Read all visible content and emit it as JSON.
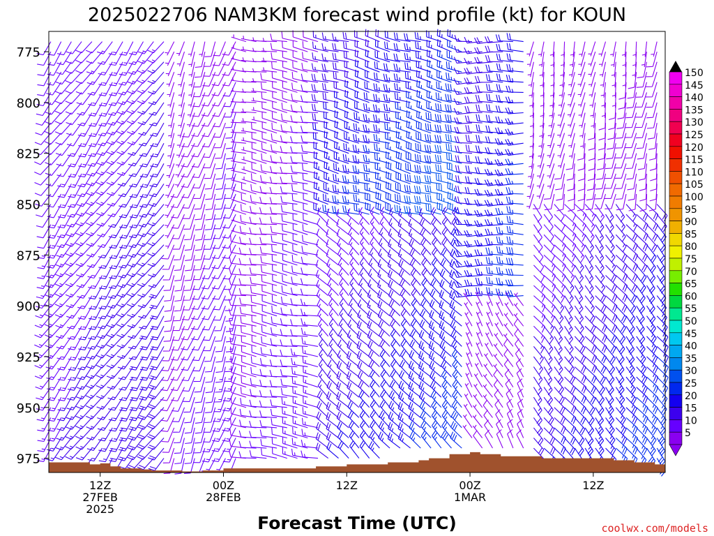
{
  "chart_data": {
    "type": "wind-barb time-height profile",
    "title": "2025022706 NAM3KM forecast wind profile (kt) for KOUN",
    "xlabel": "Forecast Time (UTC)",
    "credit": "coolwx.com/models",
    "y_axis": {
      "ticks": [
        "775",
        "800",
        "825",
        "850",
        "875",
        "900",
        "925",
        "950",
        "975"
      ],
      "range": [
        982,
        765
      ]
    },
    "x_axis": {
      "hour_range": [
        7,
        67
      ],
      "ticks": [
        {
          "hour": 12,
          "lines": [
            "12Z",
            "27FEB",
            "2025"
          ]
        },
        {
          "hour": 24,
          "lines": [
            "00Z",
            "28FEB"
          ]
        },
        {
          "hour": 36,
          "lines": [
            "12Z"
          ]
        },
        {
          "hour": 48,
          "lines": [
            "00Z",
            "1MAR"
          ]
        },
        {
          "hour": 60,
          "lines": [
            "12Z"
          ]
        }
      ]
    },
    "colorbar": {
      "labels": [
        "5",
        "10",
        "15",
        "20",
        "25",
        "30",
        "35",
        "40",
        "45",
        "50",
        "55",
        "60",
        "65",
        "70",
        "75",
        "80",
        "85",
        "90",
        "95",
        "100",
        "105",
        "110",
        "115",
        "120",
        "125",
        "130",
        "135",
        "140",
        "145",
        "150"
      ],
      "colors": [
        "#8a00f0",
        "#6600ff",
        "#3c00ee",
        "#1400f0",
        "#0028ee",
        "#0050ee",
        "#0088ee",
        "#00a8f0",
        "#00c8f0",
        "#00e8d0",
        "#00e890",
        "#00d840",
        "#22e000",
        "#77ee00",
        "#c0f000",
        "#f0f000",
        "#f0d800",
        "#f0b000",
        "#f09400",
        "#f07c00",
        "#f06a00",
        "#f05000",
        "#f03000",
        "#f01000",
        "#f00020",
        "#f00050",
        "#f00080",
        "#f000a8",
        "#f000d0",
        "#f000f0"
      ]
    },
    "terrain_color": "#a0522d",
    "surface_pressure": [
      {
        "hour": 7,
        "p": 977
      },
      {
        "hour": 10,
        "p": 977
      },
      {
        "hour": 11,
        "p": 978
      },
      {
        "hour": 12,
        "p": 977.5
      },
      {
        "hour": 13,
        "p": 979
      },
      {
        "hour": 14,
        "p": 980
      },
      {
        "hour": 16,
        "p": 980.5
      },
      {
        "hour": 17,
        "p": 981
      },
      {
        "hour": 19,
        "p": 981
      },
      {
        "hour": 20,
        "p": 981.5
      },
      {
        "hour": 22,
        "p": 981
      },
      {
        "hour": 24,
        "p": 980
      },
      {
        "hour": 30,
        "p": 980
      },
      {
        "hour": 33,
        "p": 979
      },
      {
        "hour": 36,
        "p": 978
      },
      {
        "hour": 40,
        "p": 977
      },
      {
        "hour": 43,
        "p": 976
      },
      {
        "hour": 44,
        "p": 975
      },
      {
        "hour": 46,
        "p": 973
      },
      {
        "hour": 48,
        "p": 972
      },
      {
        "hour": 49,
        "p": 973
      },
      {
        "hour": 51,
        "p": 974
      },
      {
        "hour": 55,
        "p": 975
      },
      {
        "hour": 60,
        "p": 975
      },
      {
        "hour": 62,
        "p": 976
      },
      {
        "hour": 64,
        "p": 977
      },
      {
        "hour": 66,
        "p": 978
      },
      {
        "hour": 67,
        "p": 977
      }
    ],
    "wind_regimes": [
      {
        "hours": [
          7,
          19
        ],
        "levels": [
          765,
          982
        ],
        "direction_deg": 215,
        "speed_kt": [
          10,
          20
        ]
      },
      {
        "hours": [
          19,
          26
        ],
        "levels": [
          765,
          982
        ],
        "direction_deg": 200,
        "speed_kt": [
          5,
          15
        ]
      },
      {
        "hours": [
          26,
          34
        ],
        "levels": [
          765,
          982
        ],
        "direction_deg": 280,
        "speed_kt": [
          5,
          15
        ]
      },
      {
        "hours": [
          34,
          48
        ],
        "levels": [
          765,
          860
        ],
        "direction_deg": 285,
        "speed_kt": [
          15,
          35
        ]
      },
      {
        "hours": [
          34,
          48
        ],
        "levels": [
          860,
          982
        ],
        "direction_deg": 315,
        "speed_kt": [
          10,
          30
        ]
      },
      {
        "hours": [
          48,
          54
        ],
        "levels": [
          765,
          900
        ],
        "direction_deg": 270,
        "speed_kt": [
          15,
          30
        ]
      },
      {
        "hours": [
          48,
          54
        ],
        "levels": [
          900,
          982
        ],
        "direction_deg": 330,
        "speed_kt": [
          5,
          10
        ]
      },
      {
        "hours": [
          54,
          67
        ],
        "levels": [
          765,
          850
        ],
        "direction_deg": 190,
        "speed_kt": [
          5,
          10
        ]
      },
      {
        "hours": [
          54,
          67
        ],
        "levels": [
          850,
          982
        ],
        "direction_deg": 140,
        "speed_kt": [
          10,
          30
        ]
      }
    ]
  }
}
